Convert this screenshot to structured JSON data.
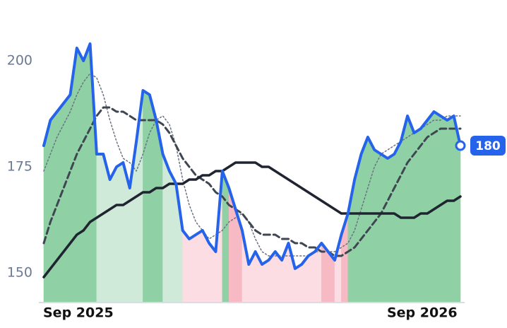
{
  "chart_data": {
    "type": "line",
    "categories": [
      "Sep 2025",
      null,
      null,
      null,
      null,
      null,
      null,
      null,
      null,
      null,
      null,
      null,
      null,
      null,
      null,
      null,
      null,
      null,
      null,
      null,
      null,
      null,
      null,
      null,
      null,
      null,
      null,
      null,
      null,
      null,
      null,
      null,
      null,
      null,
      null,
      null,
      null,
      null,
      null,
      null,
      null,
      null,
      null,
      null,
      null,
      null,
      null,
      null,
      null,
      null,
      null,
      null,
      "Sep 2026",
      null,
      null,
      null,
      null,
      null,
      null,
      null,
      null,
      null,
      null,
      null
    ],
    "series": [
      {
        "color": "#2563eb",
        "width": 4,
        "values": [
          180,
          186,
          188,
          190,
          192,
          203,
          200,
          204,
          178,
          178,
          172,
          175,
          176,
          170,
          181,
          193,
          192,
          186,
          178,
          174,
          171,
          160,
          158,
          159,
          160,
          157,
          155,
          174,
          170,
          165,
          160,
          152,
          155,
          152,
          153,
          155,
          153,
          157,
          151,
          152,
          154,
          155,
          157,
          155,
          153,
          159,
          164,
          172,
          178,
          182,
          179,
          178,
          177,
          178,
          181,
          187,
          183,
          184,
          186,
          188,
          187,
          186,
          187,
          180
        ]
      },
      {
        "color": "#6b7280",
        "width": 1.5,
        "dash": "2 3",
        "values": [
          174,
          178,
          182,
          185,
          188,
          192,
          195,
          197,
          196,
          192,
          186,
          181,
          177,
          176,
          174,
          178,
          183,
          186,
          187,
          185,
          180,
          172,
          166,
          162,
          160,
          158,
          159,
          160,
          162,
          163,
          164,
          162,
          158,
          155,
          154,
          154,
          154,
          154,
          154,
          154,
          154,
          155,
          155,
          155,
          155,
          156,
          157,
          160,
          165,
          170,
          175,
          178,
          179,
          180,
          181,
          182,
          183,
          184,
          185,
          186,
          186,
          187,
          187,
          187
        ]
      },
      {
        "color": "#3f4652",
        "width": 3,
        "dash": "9 5",
        "values": [
          157,
          162,
          166,
          170,
          174,
          178,
          181,
          184,
          187,
          189,
          189,
          188,
          188,
          187,
          186,
          186,
          186,
          186,
          185,
          183,
          180,
          177,
          175,
          173,
          172,
          171,
          169,
          168,
          166,
          165,
          164,
          162,
          160,
          159,
          159,
          159,
          158,
          158,
          157,
          157,
          156,
          156,
          155,
          155,
          154,
          154,
          155,
          156,
          158,
          160,
          162,
          164,
          167,
          170,
          173,
          176,
          178,
          180,
          182,
          183,
          184,
          184,
          184,
          184
        ]
      },
      {
        "color": "#1f2430",
        "width": 3.5,
        "values": [
          149,
          151,
          153,
          155,
          157,
          159,
          160,
          162,
          163,
          164,
          165,
          166,
          166,
          167,
          168,
          169,
          169,
          170,
          170,
          171,
          171,
          171,
          172,
          172,
          173,
          173,
          174,
          174,
          175,
          176,
          176,
          176,
          176,
          175,
          175,
          174,
          173,
          172,
          171,
          170,
          169,
          168,
          167,
          166,
          165,
          164,
          164,
          164,
          164,
          164,
          164,
          164,
          164,
          164,
          163,
          163,
          163,
          164,
          164,
          165,
          166,
          167,
          167,
          168
        ]
      }
    ],
    "ylim": [
      143,
      214
    ],
    "yticks": [
      150,
      175,
      200
    ]
  }
}
